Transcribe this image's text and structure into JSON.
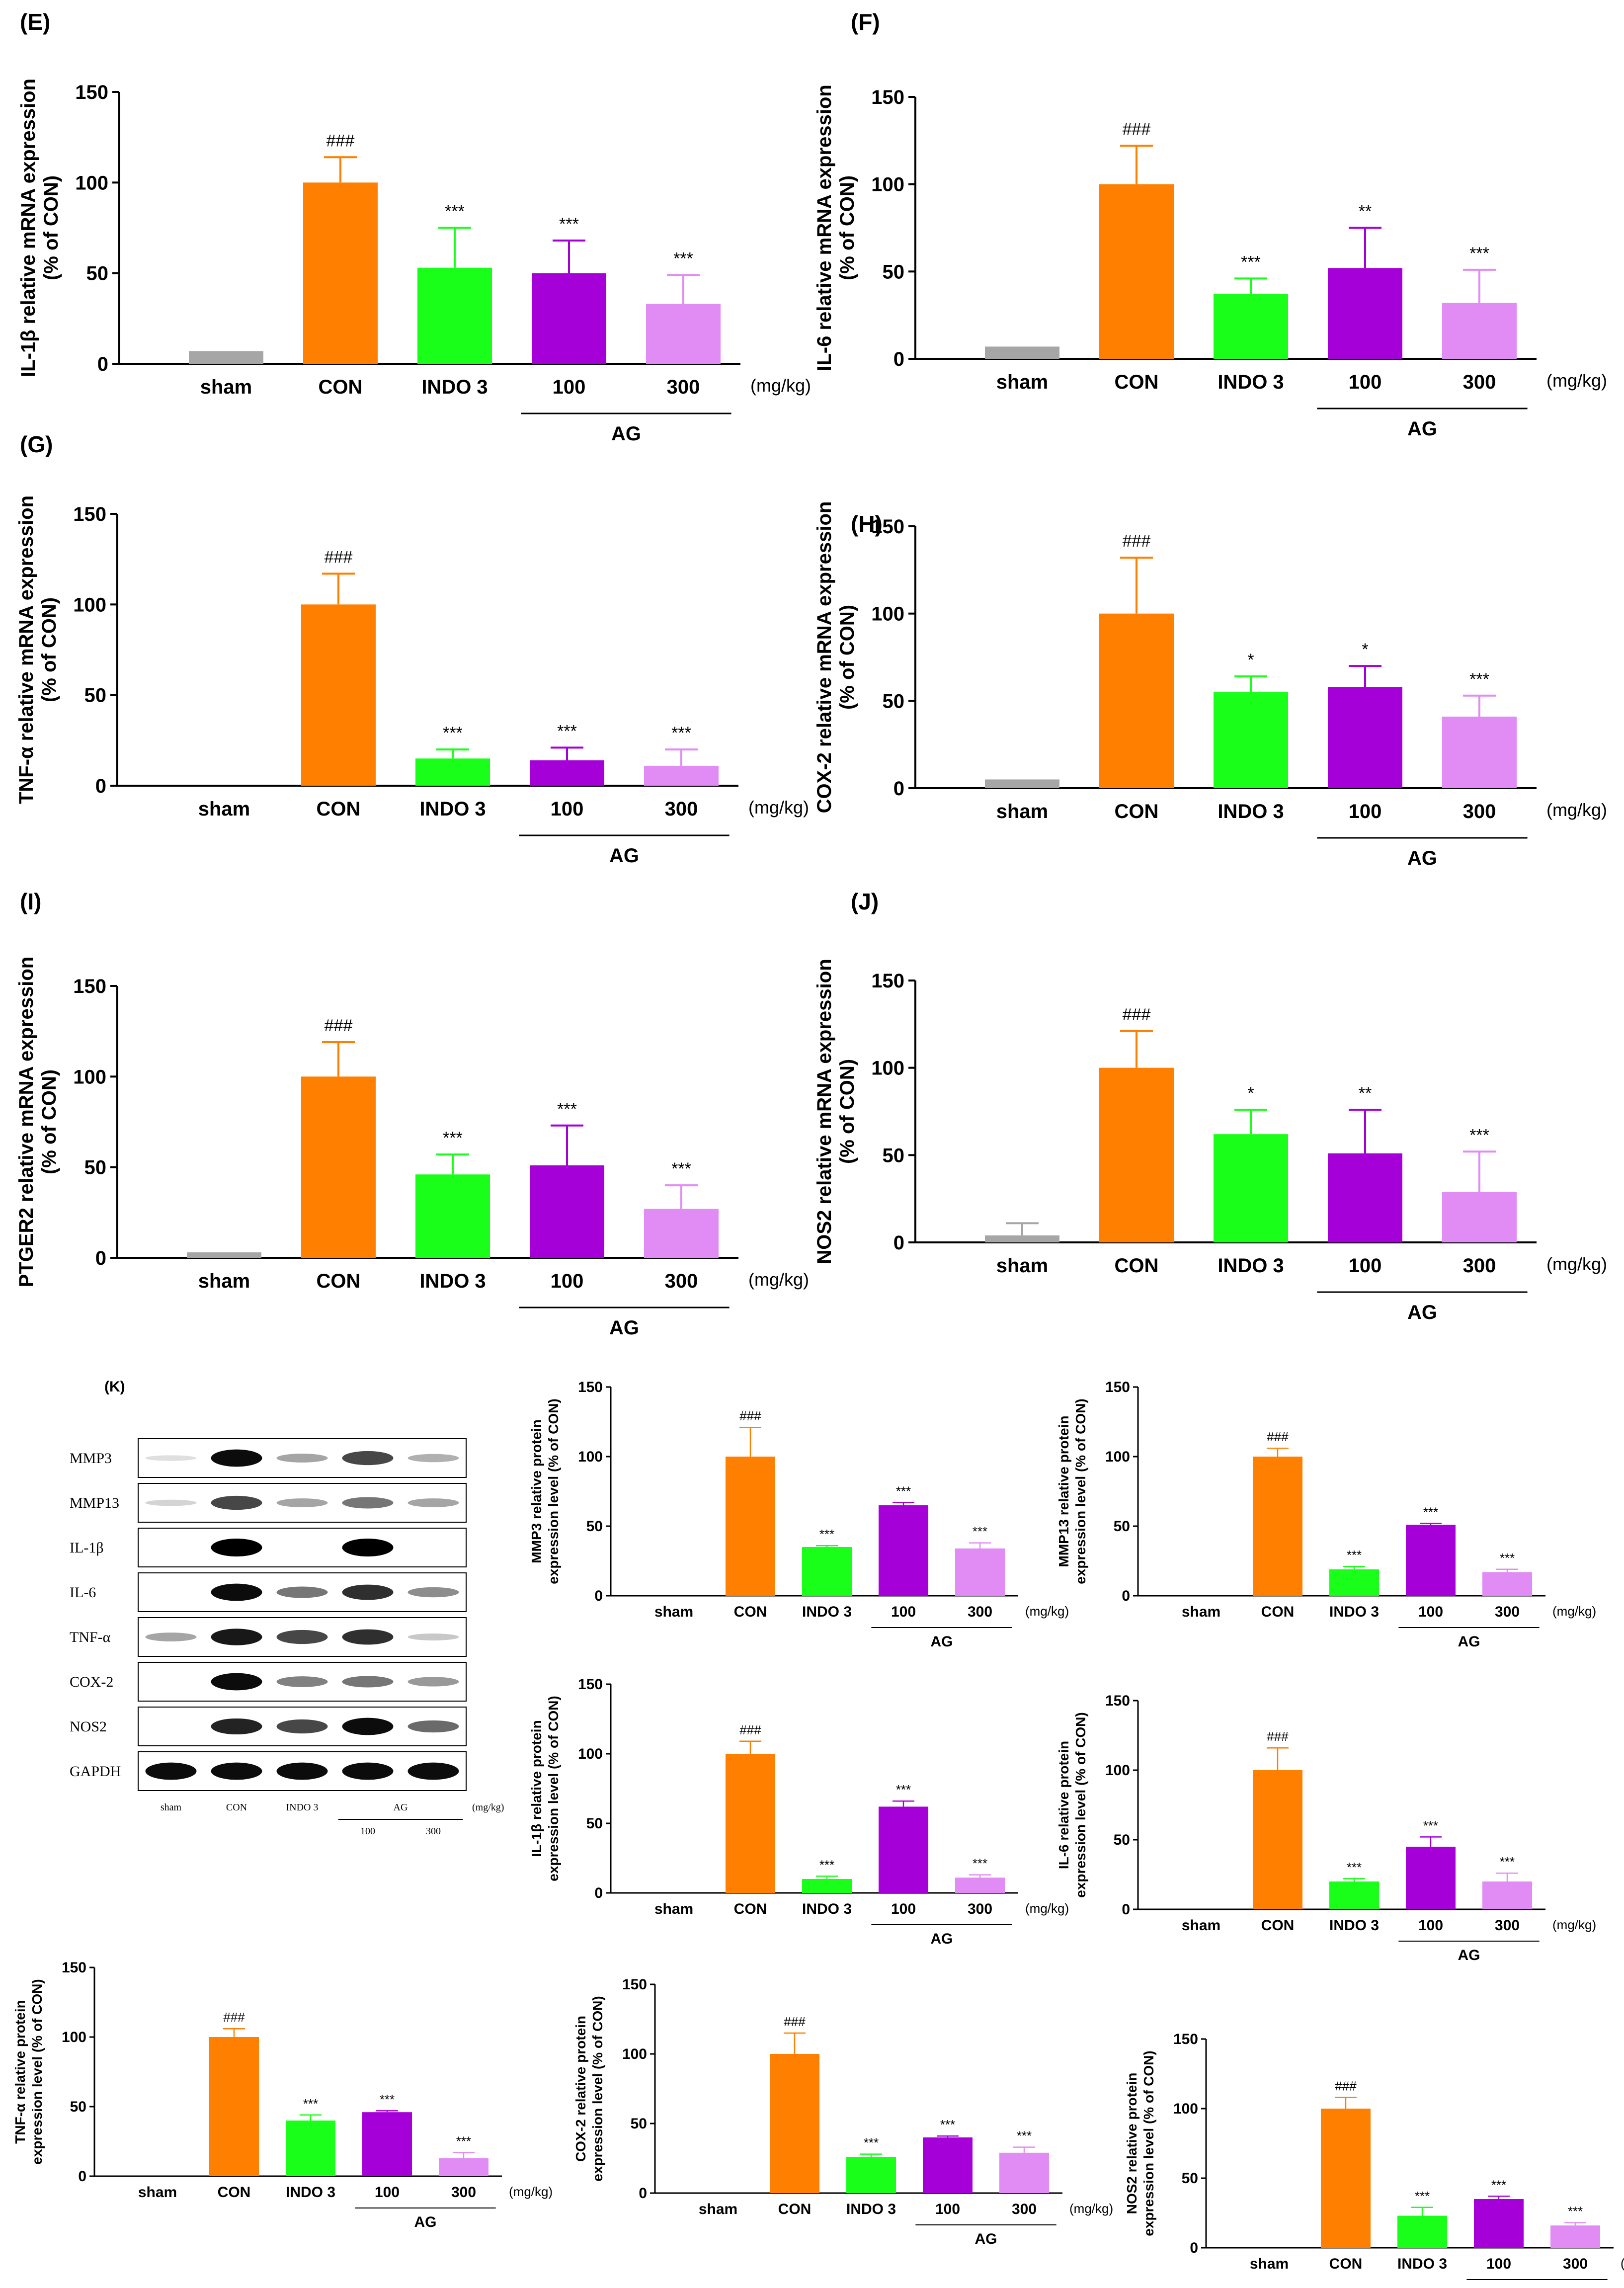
{
  "colors": {
    "sham": "#a6a6a6",
    "CON": "#ff8000",
    "INDO 3": "#1aff1a",
    "100": "#a600d9",
    "300": "#e18cf5"
  },
  "categories": [
    "sham",
    "CON",
    "INDO 3",
    "100",
    "300"
  ],
  "group_label": "AG",
  "unit_label": "(mg/kg)",
  "chart_data": [
    {
      "id": "E",
      "type": "bar",
      "panel": "(E)",
      "ylabel": [
        "IL-1β relative mRNA expression",
        "(% of CON)"
      ],
      "yticks": [
        0,
        50,
        100,
        150
      ],
      "ylim": [
        0,
        150
      ],
      "values": [
        7,
        100,
        53,
        50,
        33
      ],
      "errors": [
        0,
        14,
        22,
        18,
        16
      ],
      "annotations": [
        "",
        "###",
        "***",
        "***",
        "***"
      ]
    },
    {
      "id": "F",
      "type": "bar",
      "panel": "(F)",
      "ylabel": [
        "IL-6 relative mRNA expression",
        "(% of CON)"
      ],
      "yticks": [
        0,
        50,
        100,
        150
      ],
      "ylim": [
        0,
        150
      ],
      "values": [
        7,
        100,
        37,
        52,
        32
      ],
      "errors": [
        0,
        22,
        9,
        23,
        19
      ],
      "annotations": [
        "",
        "###",
        "***",
        "**",
        "***"
      ]
    },
    {
      "id": "G",
      "type": "bar",
      "panel": "(G)",
      "ylabel": [
        "TNF-α relative mRNA expression",
        "(% of CON)"
      ],
      "yticks": [
        0,
        50,
        100,
        150
      ],
      "ylim": [
        0,
        150
      ],
      "values": [
        0,
        100,
        15,
        14,
        11
      ],
      "errors": [
        0,
        17,
        5,
        7,
        9
      ],
      "annotations": [
        "",
        "###",
        "***",
        "***",
        "***"
      ]
    },
    {
      "id": "H",
      "type": "bar",
      "panel": "(H)",
      "ylabel": [
        "COX-2 relative mRNA expression",
        "(% of CON)"
      ],
      "yticks": [
        0,
        50,
        100,
        150
      ],
      "ylim": [
        0,
        150
      ],
      "values": [
        5,
        100,
        55,
        58,
        41
      ],
      "errors": [
        0,
        32,
        9,
        12,
        12
      ],
      "annotations": [
        "",
        "###",
        "*",
        "*",
        "***"
      ]
    },
    {
      "id": "I",
      "type": "bar",
      "panel": "(I)",
      "ylabel": [
        "PTGER2 relative mRNA expression",
        "(% of CON)"
      ],
      "yticks": [
        0,
        50,
        100,
        150
      ],
      "ylim": [
        0,
        150
      ],
      "values": [
        3,
        100,
        46,
        51,
        27
      ],
      "errors": [
        0,
        19,
        11,
        22,
        13
      ],
      "annotations": [
        "",
        "###",
        "***",
        "***",
        "***"
      ]
    },
    {
      "id": "J",
      "type": "bar",
      "panel": "(J)",
      "ylabel": [
        "NOS2 relative mRNA expression",
        "(% of CON)"
      ],
      "yticks": [
        0,
        50,
        100,
        150
      ],
      "ylim": [
        0,
        150
      ],
      "values": [
        4,
        100,
        62,
        51,
        29
      ],
      "errors": [
        7,
        21,
        14,
        25,
        23
      ],
      "annotations": [
        "",
        "###",
        "*",
        "**",
        "***"
      ]
    },
    {
      "id": "MMP3",
      "type": "bar",
      "ylabel": [
        "MMP3 relative protein",
        "expression level (% of CON)"
      ],
      "yticks": [
        0,
        50,
        100,
        150
      ],
      "ylim": [
        0,
        150
      ],
      "values": [
        0,
        100,
        35,
        65,
        34
      ],
      "errors": [
        0,
        21,
        1,
        2,
        4
      ],
      "annotations": [
        "",
        "###",
        "***",
        "***",
        "***"
      ]
    },
    {
      "id": "MMP13",
      "type": "bar",
      "ylabel": [
        "MMP13 relative protein",
        "expression level (% of CON)"
      ],
      "yticks": [
        0,
        50,
        100,
        150
      ],
      "ylim": [
        0,
        150
      ],
      "values": [
        0,
        100,
        19,
        51,
        17
      ],
      "errors": [
        0,
        6,
        2,
        1,
        2
      ],
      "annotations": [
        "",
        "###",
        "***",
        "***",
        "***"
      ]
    },
    {
      "id": "IL1B",
      "type": "bar",
      "ylabel": [
        "IL-1β relative protein",
        "expression level (% of CON)"
      ],
      "yticks": [
        0,
        50,
        100,
        150
      ],
      "ylim": [
        0,
        150
      ],
      "values": [
        0,
        100,
        10,
        62,
        11
      ],
      "errors": [
        0,
        9,
        2,
        4,
        2
      ],
      "annotations": [
        "",
        "###",
        "***",
        "***",
        "***"
      ]
    },
    {
      "id": "IL6",
      "type": "bar",
      "ylabel": [
        "IL-6 relative protein",
        "expression level (% of CON)"
      ],
      "yticks": [
        0,
        50,
        100,
        150
      ],
      "ylim": [
        0,
        150
      ],
      "values": [
        0,
        100,
        20,
        45,
        20
      ],
      "errors": [
        0,
        16,
        2,
        7,
        6
      ],
      "annotations": [
        "",
        "###",
        "***",
        "***",
        "***"
      ]
    },
    {
      "id": "TNFA",
      "type": "bar",
      "ylabel": [
        "TNF-α relative protein",
        "expression level (% of CON)"
      ],
      "yticks": [
        0,
        50,
        100,
        150
      ],
      "ylim": [
        0,
        150
      ],
      "values": [
        0,
        100,
        40,
        46,
        13
      ],
      "errors": [
        0,
        6,
        4,
        1,
        4
      ],
      "annotations": [
        "",
        "###",
        "***",
        "***",
        "***"
      ]
    },
    {
      "id": "COX2",
      "type": "bar",
      "ylabel": [
        "COX-2 relative protein",
        "expression level (% of CON)"
      ],
      "yticks": [
        0,
        50,
        100,
        150
      ],
      "ylim": [
        0,
        150
      ],
      "values": [
        0,
        100,
        26,
        40,
        29
      ],
      "errors": [
        0,
        15,
        2,
        1,
        4
      ],
      "annotations": [
        "",
        "###",
        "***",
        "***",
        "***"
      ]
    },
    {
      "id": "NOS2",
      "type": "bar",
      "ylabel": [
        "NOS2 relative protein",
        "expression level (% of CON)"
      ],
      "yticks": [
        0,
        50,
        100,
        150
      ],
      "ylim": [
        0,
        150
      ],
      "values": [
        0,
        100,
        23,
        35,
        16
      ],
      "errors": [
        0,
        8,
        6,
        2,
        2
      ],
      "annotations": [
        "",
        "###",
        "***",
        "***",
        "***"
      ]
    }
  ],
  "western_blot": {
    "panel": "(K)",
    "bands": [
      {
        "label": "MMP3",
        "intensity": [
          0.05,
          0.95,
          0.3,
          0.7,
          0.25
        ]
      },
      {
        "label": "MMP13",
        "intensity": [
          0.1,
          0.7,
          0.3,
          0.5,
          0.3
        ]
      },
      {
        "label": "IL-1β",
        "intensity": [
          0,
          1,
          0,
          1,
          0
        ]
      },
      {
        "label": "IL-6",
        "intensity": [
          0,
          0.95,
          0.5,
          0.8,
          0.4
        ]
      },
      {
        "label": "TNF-α",
        "intensity": [
          0.3,
          0.9,
          0.7,
          0.8,
          0.15
        ]
      },
      {
        "label": "COX-2",
        "intensity": [
          0,
          0.95,
          0.45,
          0.5,
          0.35
        ]
      },
      {
        "label": "NOS2",
        "intensity": [
          0,
          0.85,
          0.7,
          0.95,
          0.55
        ]
      },
      {
        "label": "GAPDH",
        "intensity": [
          0.95,
          0.95,
          0.95,
          0.95,
          0.95
        ]
      }
    ],
    "lane_labels": [
      "sham",
      "CON",
      "INDO 3",
      "AG"
    ],
    "unit": "(mg/kg)",
    "ag_doses": [
      "100",
      "300"
    ]
  }
}
